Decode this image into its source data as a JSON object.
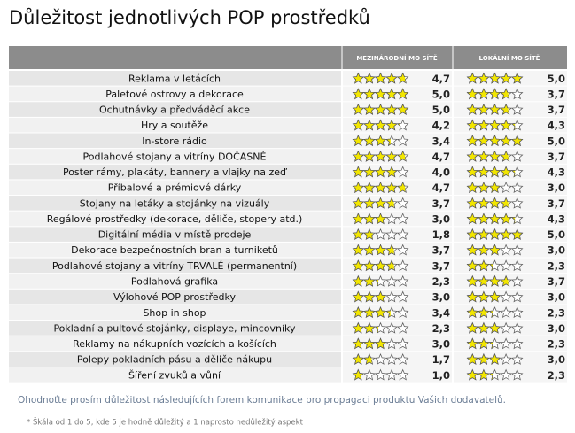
{
  "header": {
    "title": "Důležitost jednotlivých POP prostředků"
  },
  "table": {
    "columns": [
      "MEZINÁRODNÍ  MO SÍTĚ",
      "LOKÁLNÍ  MO SÍTĚ"
    ],
    "rows": [
      {
        "name": "Reklama v letácích",
        "international": {
          "value": 4.7,
          "label": "4,7"
        },
        "local": {
          "value": 5.0,
          "label": "5,0"
        }
      },
      {
        "name": "Paletové ostrovy a dekorace",
        "international": {
          "value": 5.0,
          "label": "5,0"
        },
        "local": {
          "value": 3.7,
          "label": "3,7"
        }
      },
      {
        "name": "Ochutnávky a předváděcí akce",
        "international": {
          "value": 5.0,
          "label": "5,0"
        },
        "local": {
          "value": 3.7,
          "label": "3,7"
        }
      },
      {
        "name": "Hry a soutěže",
        "international": {
          "value": 4.2,
          "label": "4,2"
        },
        "local": {
          "value": 4.3,
          "label": "4,3"
        }
      },
      {
        "name": "In-store rádio",
        "international": {
          "value": 3.4,
          "label": "3,4"
        },
        "local": {
          "value": 5.0,
          "label": "5,0"
        }
      },
      {
        "name": "Podlahové stojany a vitríny  DOČASNÉ",
        "international": {
          "value": 4.7,
          "label": "4,7"
        },
        "local": {
          "value": 3.7,
          "label": "3,7"
        }
      },
      {
        "name": "Poster rámy, plakáty, bannery a vlajky na zeď",
        "international": {
          "value": 4.0,
          "label": "4,0"
        },
        "local": {
          "value": 4.3,
          "label": "4,3"
        }
      },
      {
        "name": "Příbalové a prémiové dárky",
        "international": {
          "value": 4.7,
          "label": "4,7"
        },
        "local": {
          "value": 3.0,
          "label": "3,0"
        }
      },
      {
        "name": "Stojany na letáky a stojánky na vizuály",
        "international": {
          "value": 3.7,
          "label": "3,7"
        },
        "local": {
          "value": 3.7,
          "label": "3,7"
        }
      },
      {
        "name": "Regálové prostředky (dekorace, děliče, stopery atd.)",
        "international": {
          "value": 3.0,
          "label": "3,0"
        },
        "local": {
          "value": 4.3,
          "label": "4,3"
        }
      },
      {
        "name": "Digitální média v místě prodeje",
        "international": {
          "value": 1.8,
          "label": "1,8"
        },
        "local": {
          "value": 5.0,
          "label": "5,0"
        }
      },
      {
        "name": "Dekorace bezpečnostních bran a turniketů",
        "international": {
          "value": 3.7,
          "label": "3,7"
        },
        "local": {
          "value": 3.0,
          "label": "3,0"
        }
      },
      {
        "name": "Podlahové stojany a vitríny  TRVALÉ (permanentní)",
        "international": {
          "value": 3.7,
          "label": "3,7"
        },
        "local": {
          "value": 2.3,
          "label": "2,3"
        }
      },
      {
        "name": "Podlahová grafika",
        "international": {
          "value": 2.3,
          "label": "2,3"
        },
        "local": {
          "value": 3.7,
          "label": "3,7"
        }
      },
      {
        "name": "Výlohové POP prostředky",
        "international": {
          "value": 3.0,
          "label": "3,0"
        },
        "local": {
          "value": 3.0,
          "label": "3,0"
        }
      },
      {
        "name": "Shop in shop",
        "international": {
          "value": 3.4,
          "label": "3,4"
        },
        "local": {
          "value": 2.3,
          "label": "2,3"
        }
      },
      {
        "name": "Pokladní a pultové stojánky, displaye, mincovníky",
        "international": {
          "value": 2.3,
          "label": "2,3"
        },
        "local": {
          "value": 3.0,
          "label": "3,0"
        }
      },
      {
        "name": "Reklamy na nákupních vozících a košících",
        "international": {
          "value": 3.0,
          "label": "3,0"
        },
        "local": {
          "value": 2.3,
          "label": "2,3"
        }
      },
      {
        "name": "Polepy pokladních pásu a děliče nákupu",
        "international": {
          "value": 1.7,
          "label": "1,7"
        },
        "local": {
          "value": 3.0,
          "label": "3,0"
        }
      },
      {
        "name": "Šíření zvuků a vůní",
        "international": {
          "value": 1.0,
          "label": "1,0"
        },
        "local": {
          "value": 2.3,
          "label": "2,3"
        }
      }
    ],
    "scale_max": 5
  },
  "footer": {
    "question": "Ohodnoťte prosím důležitost následujících forem komunikace pro propagaci produktu Vašich dodavatelů.",
    "note": "* Škála od 1 do 5, kde 5 je hodně důležitý a 1 naprosto nedůležitý aspekt"
  }
}
